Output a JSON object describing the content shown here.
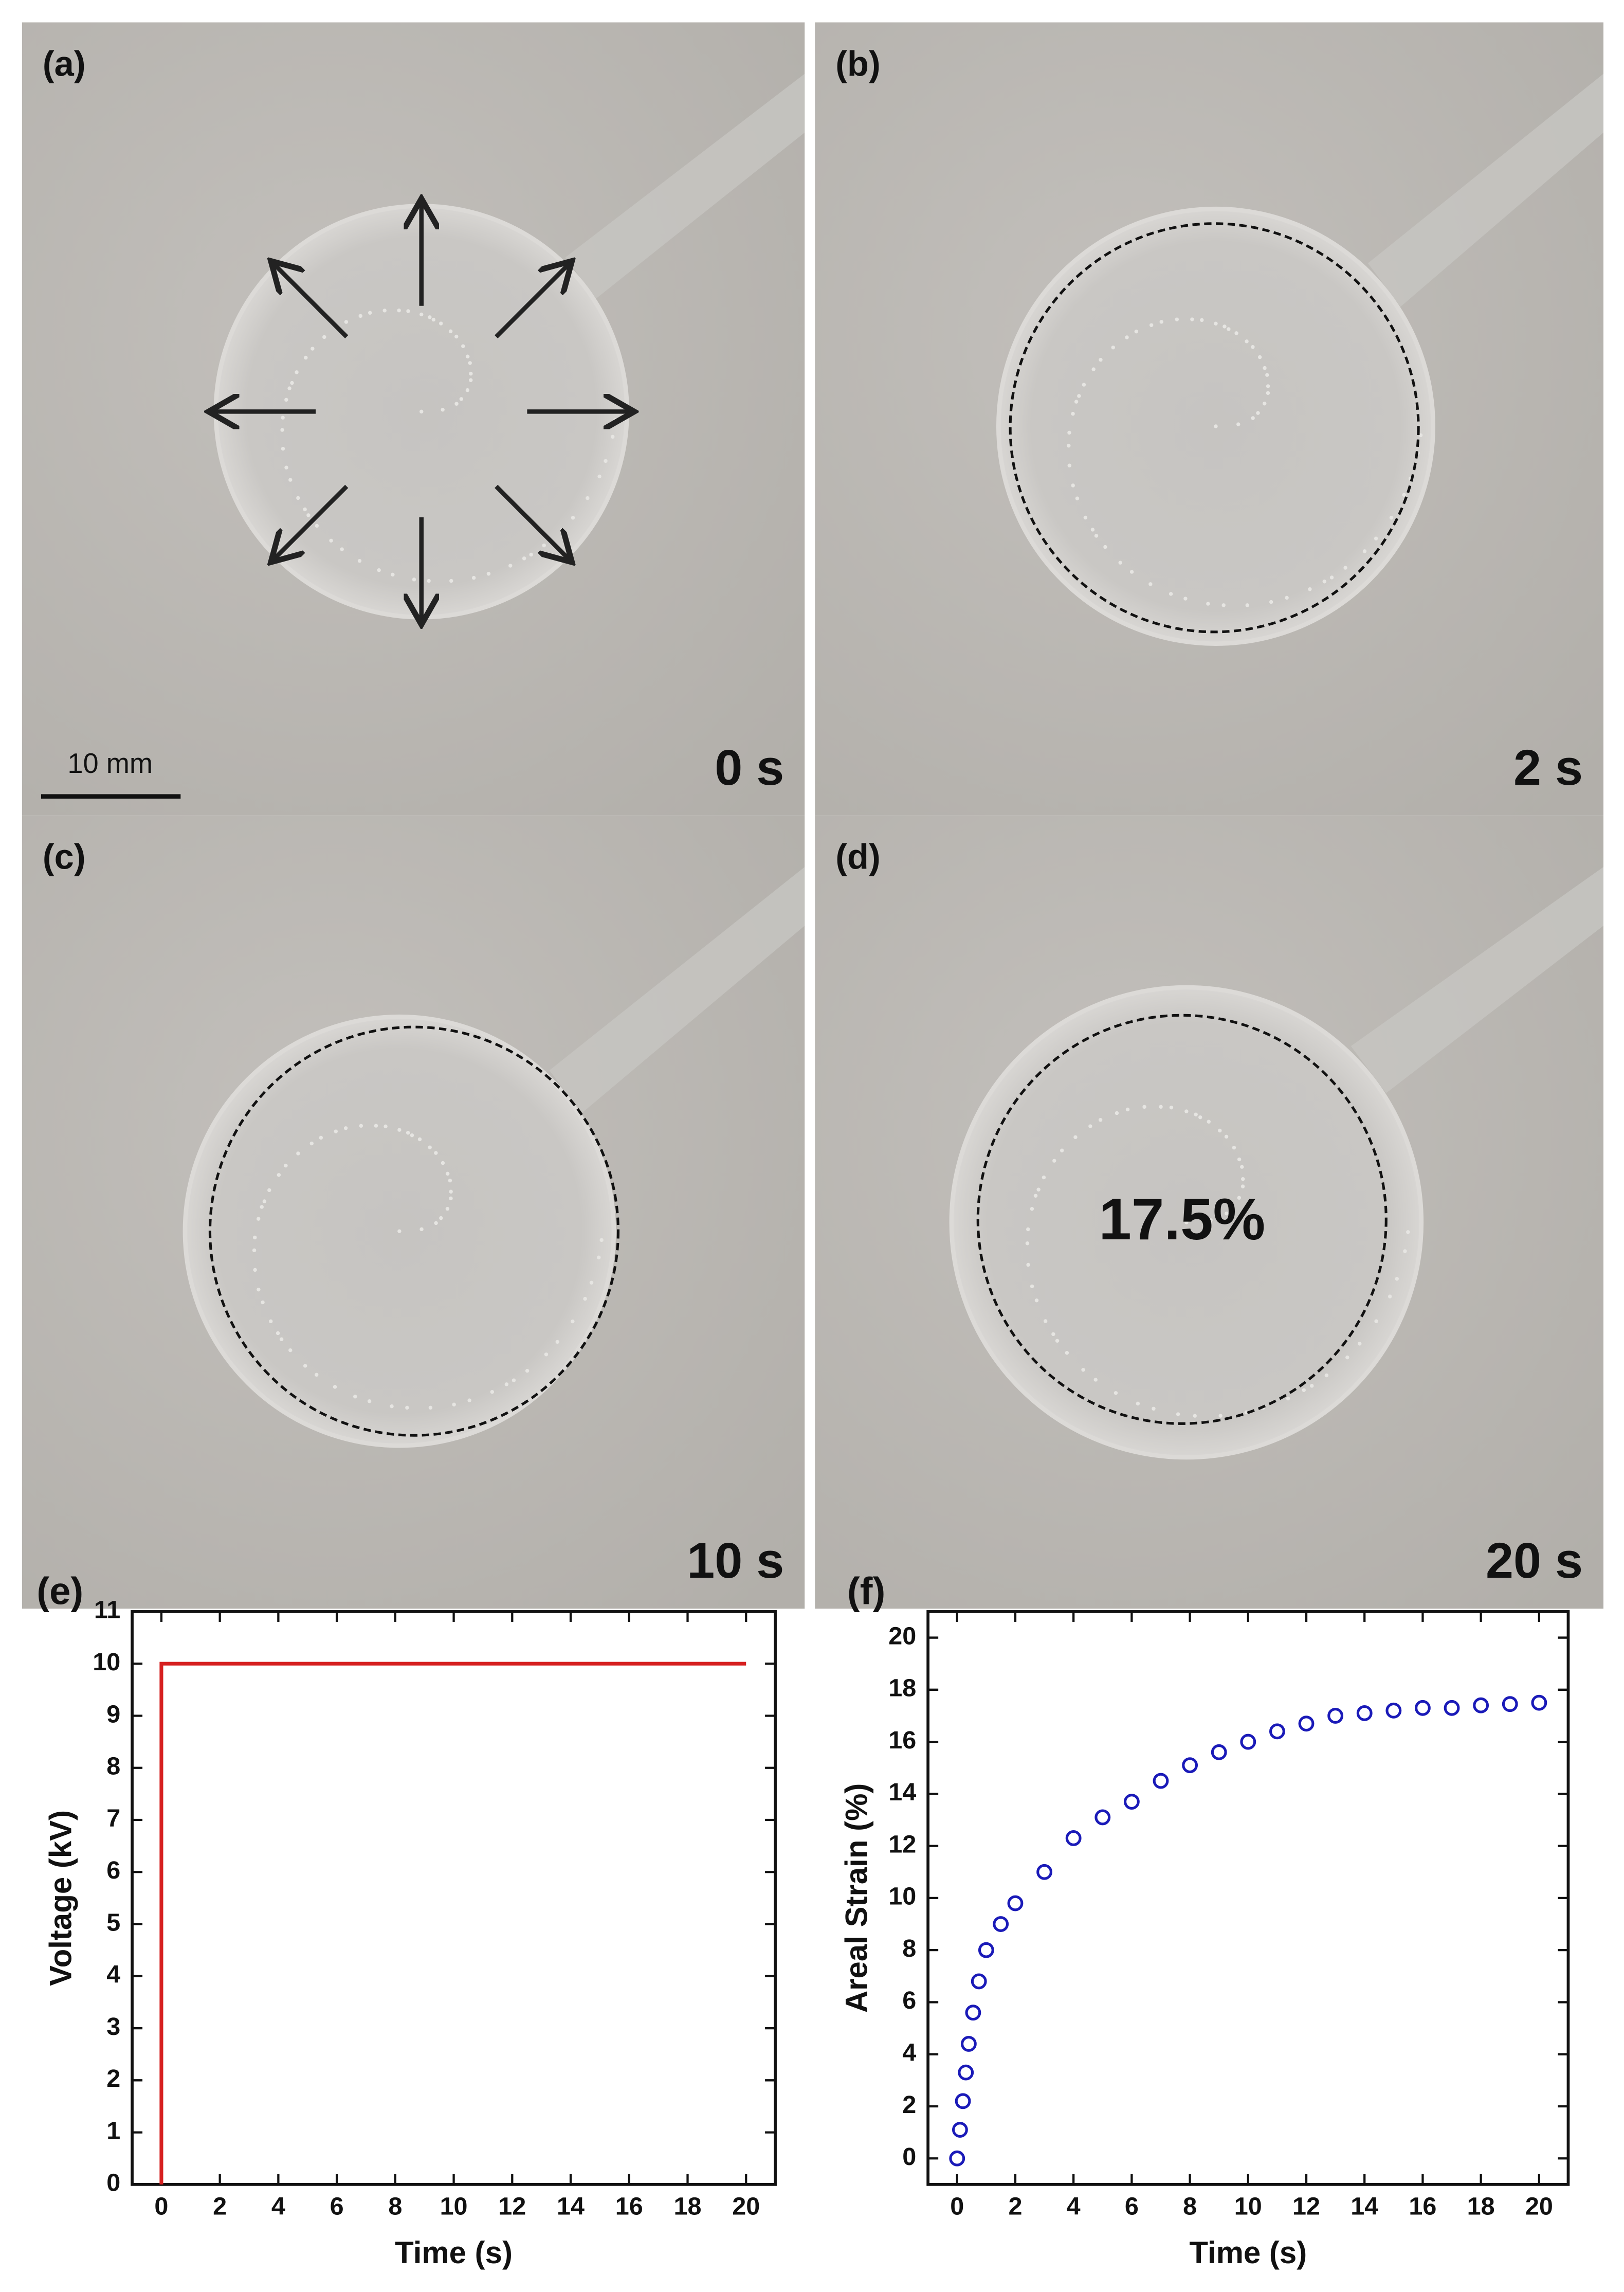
{
  "panels": [
    {
      "label": "(a)",
      "time": "0 s",
      "scale_bar": "10 mm"
    },
    {
      "label": "(b)",
      "time": "2 s"
    },
    {
      "label": "(c)",
      "time": "10 s"
    },
    {
      "label": "(d)",
      "time": "20 s",
      "annotation": "17.5%"
    }
  ],
  "chart_data": [
    {
      "type": "line",
      "panel_label": "(e)",
      "x_label": "Time (s)",
      "y_label": "Voltage (kV)",
      "x": [
        0,
        0,
        20
      ],
      "values": [
        0,
        10,
        10
      ],
      "color": "#d62020",
      "xlim": [
        -1,
        21
      ],
      "xticks": [
        0,
        2,
        4,
        6,
        8,
        10,
        12,
        14,
        16,
        18,
        20
      ],
      "ylim": [
        0,
        11
      ],
      "yticks": [
        0,
        1,
        2,
        3,
        4,
        5,
        6,
        7,
        8,
        9,
        10,
        11
      ]
    },
    {
      "type": "scatter",
      "panel_label": "(f)",
      "x_label": "Time (s)",
      "y_label": "Areal Strain (%)",
      "x": [
        0,
        0.1,
        0.2,
        0.3,
        0.4,
        0.55,
        0.75,
        1,
        1.5,
        2,
        3,
        4,
        5,
        6,
        7,
        8,
        9,
        10,
        11,
        12,
        13,
        14,
        15,
        16,
        17,
        18,
        19,
        20
      ],
      "values": [
        0,
        1.1,
        2.2,
        3.3,
        4.4,
        5.6,
        6.8,
        8.0,
        9.0,
        9.8,
        11.0,
        12.3,
        13.1,
        13.7,
        14.5,
        15.1,
        15.6,
        16.0,
        16.4,
        16.7,
        17.0,
        17.1,
        17.2,
        17.3,
        17.3,
        17.4,
        17.45,
        17.5
      ],
      "color": "#1a1ab8",
      "xlim": [
        -1,
        21
      ],
      "xticks": [
        0,
        2,
        4,
        6,
        8,
        10,
        12,
        14,
        16,
        18,
        20
      ],
      "ylim": [
        -1,
        21
      ],
      "yticks": [
        0,
        2,
        4,
        6,
        8,
        10,
        12,
        14,
        16,
        18,
        20
      ]
    }
  ]
}
